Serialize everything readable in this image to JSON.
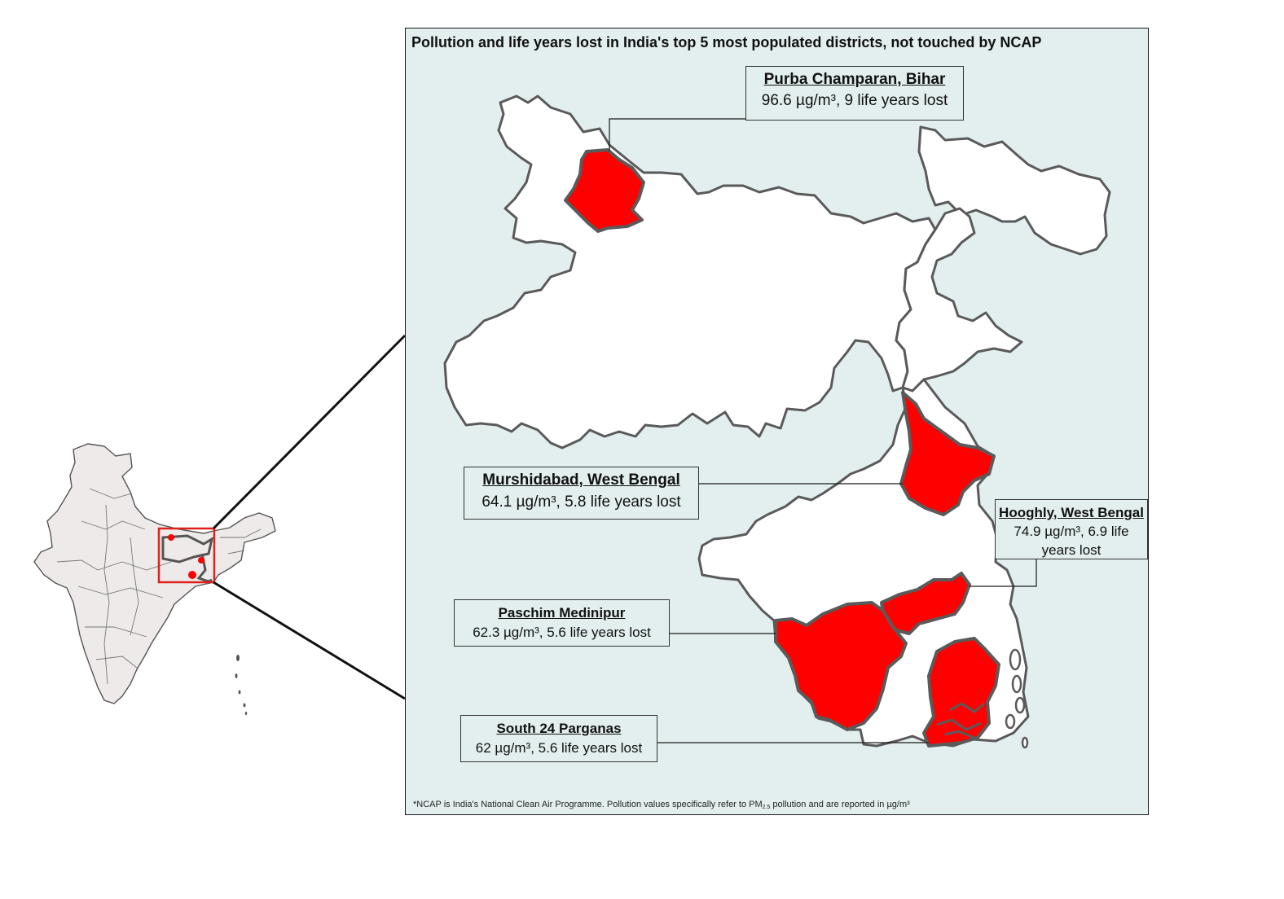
{
  "title": "Pollution and life years lost in India's top 5 most populated districts, not touched by NCAP",
  "colors": {
    "highlight": "#ff0000",
    "state_fill": "#ffffff",
    "state_outline": "#5a5a5a",
    "map_background": "#e2efee",
    "inset_fill": "#eeeaea",
    "inset_box": "#e0201c"
  },
  "districts": [
    {
      "name": "Purba Champaran, Bihar",
      "stat": "96.6 µg/m³, 9 life years lost"
    },
    {
      "name": "Murshidabad, West Bengal",
      "stat": "64.1 µg/m³,  5.8 life years lost"
    },
    {
      "name": "Hooghly, West Bengal",
      "stat_line1": "74.9 µg/m³, 6.9 life",
      "stat_line2": "years lost"
    },
    {
      "name": "Paschim Medinipur",
      "stat": "62.3 µg/m³, 5.6 life years lost"
    },
    {
      "name": "South 24 Parganas",
      "stat": "62 µg/m³, 5.6 life years lost"
    }
  ],
  "footnote": {
    "before": "*NCAP is India's National Clean Air Programme. Pollution values specifically refer to PM",
    "sub": "2.5",
    "after": " pollution and are reported in µg/m³"
  }
}
